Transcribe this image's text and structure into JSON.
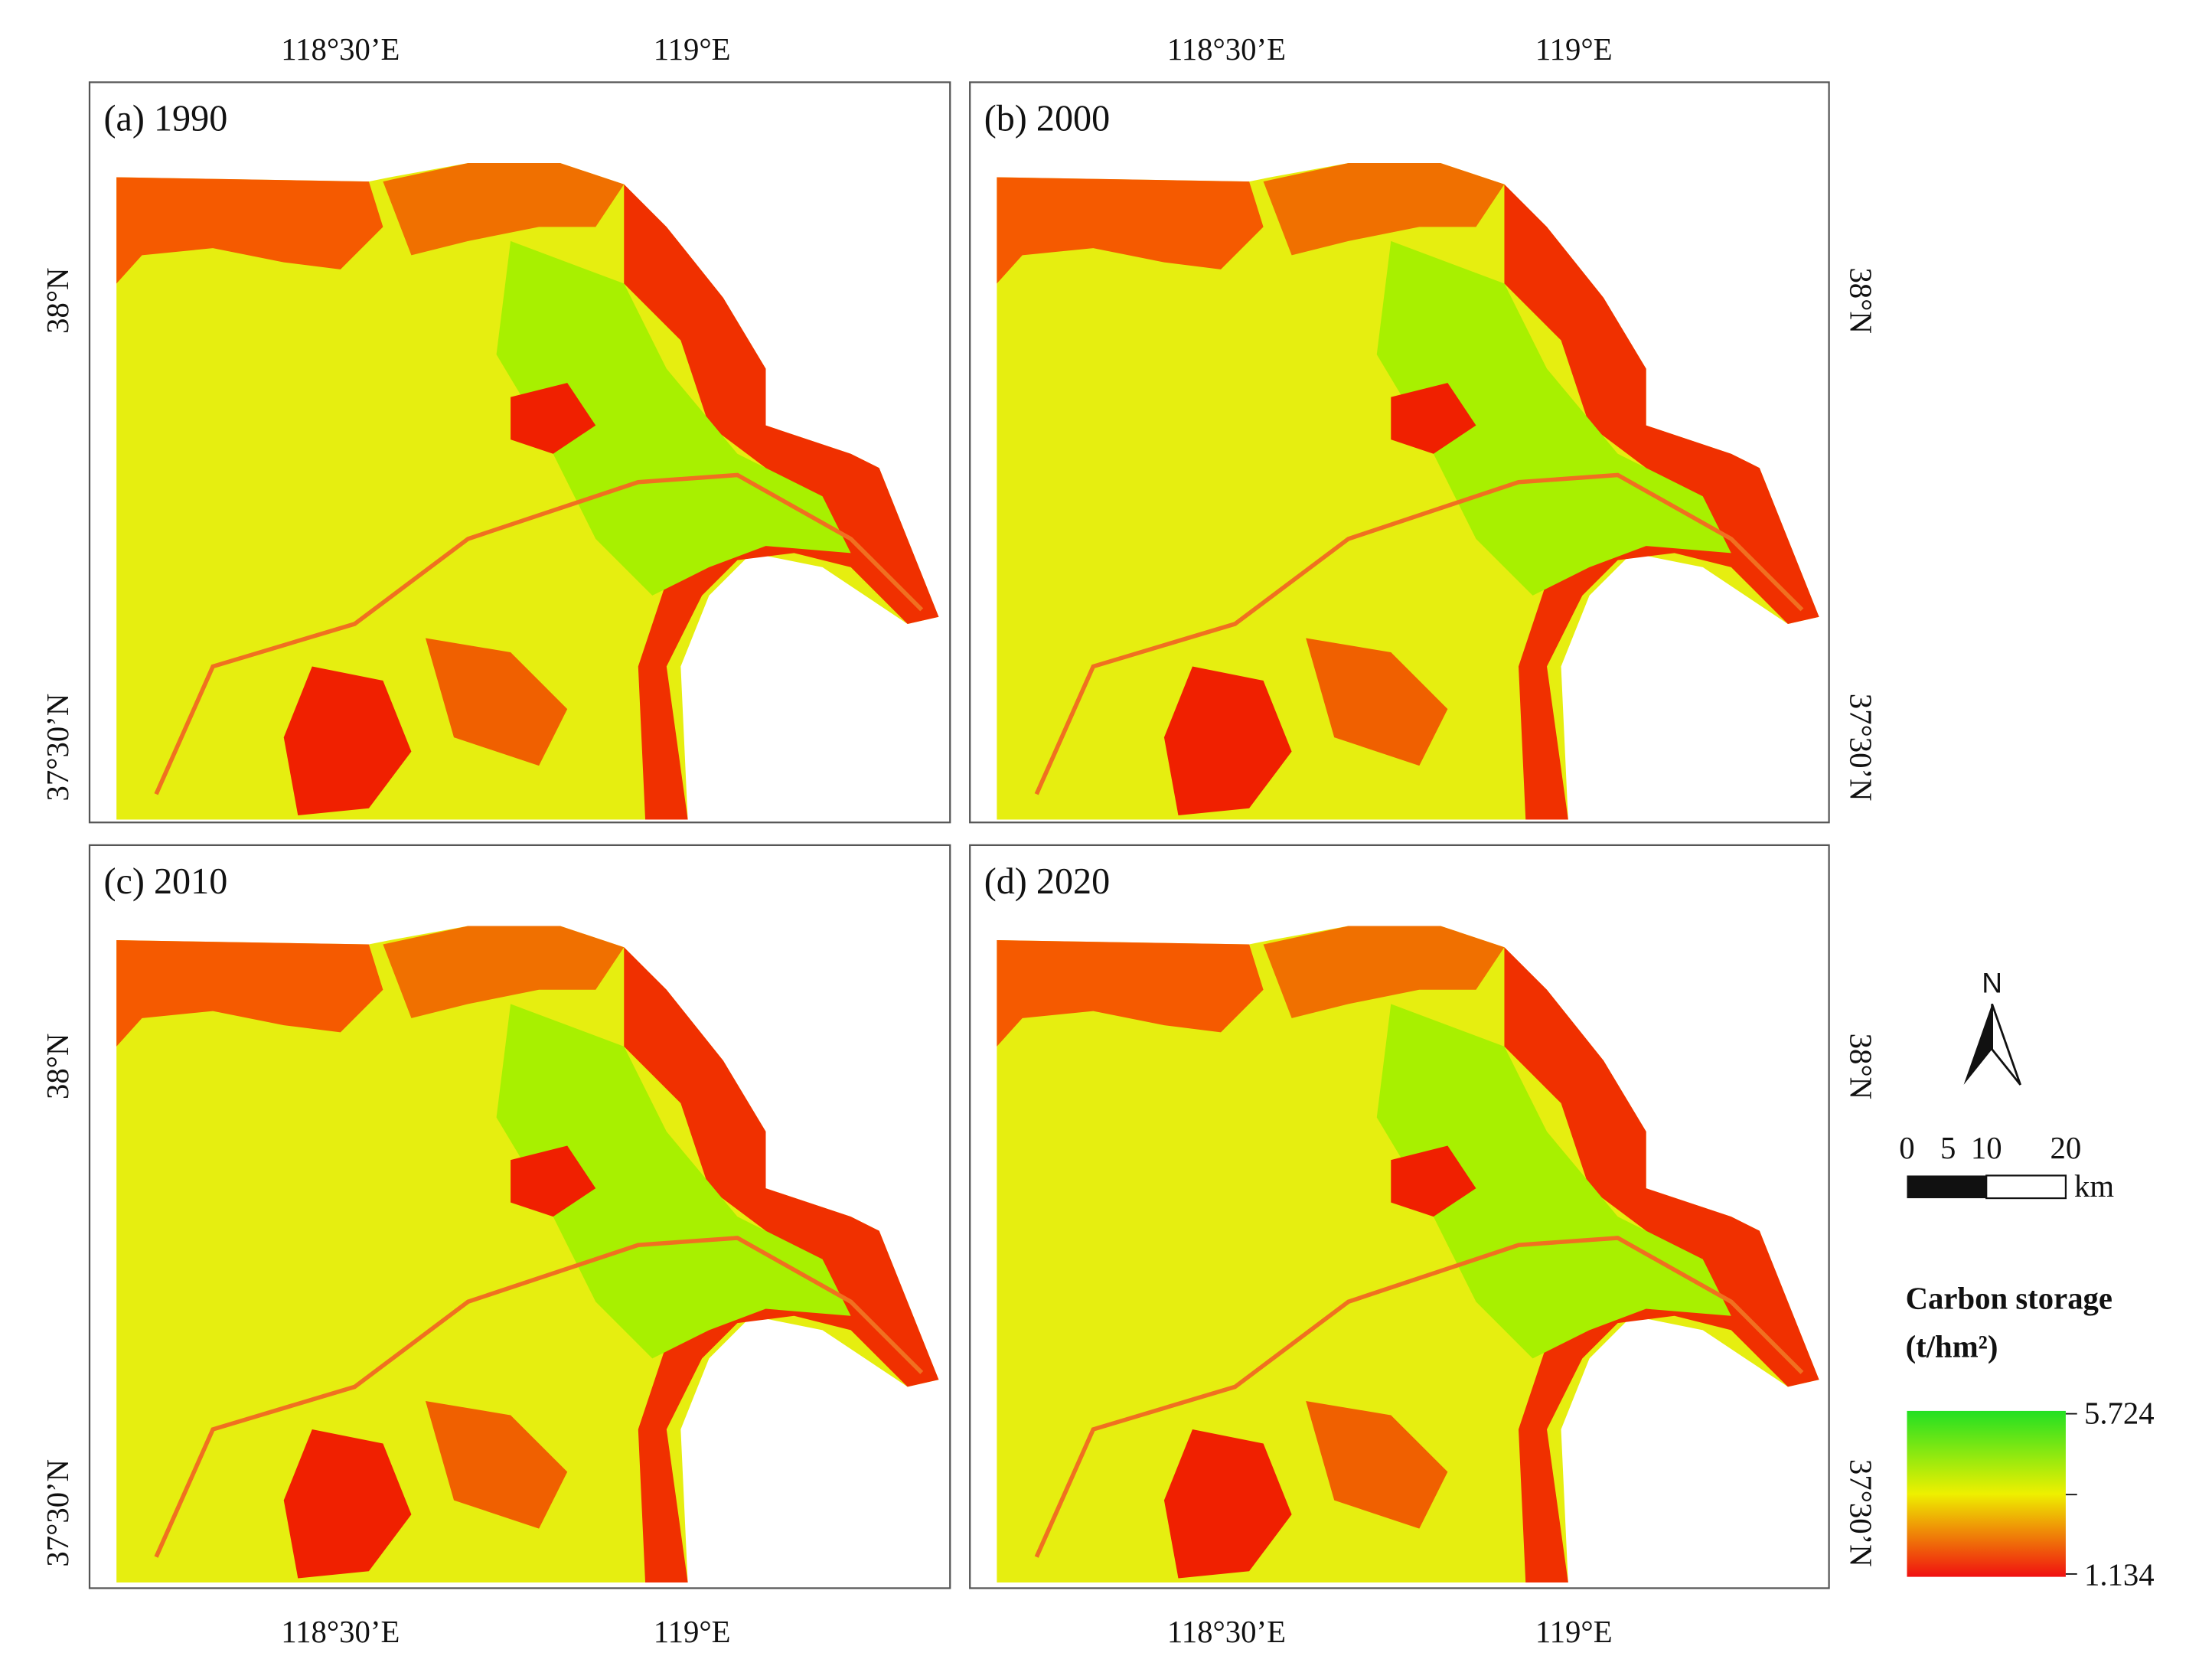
{
  "panels": [
    {
      "label": "(a) 1990"
    },
    {
      "label": "(b) 2000"
    },
    {
      "label": "(c) 2010"
    },
    {
      "label": "(d) 2020"
    }
  ],
  "longitude_labels": [
    "118°30’E",
    "119°E"
  ],
  "latitude_labels": [
    "38°N",
    "37°30’N"
  ],
  "north_arrow": "N",
  "scale_bar": {
    "labels": [
      "0",
      "5",
      "10",
      "20"
    ],
    "unit": "km"
  },
  "legend": {
    "title": "Carbon storage",
    "unit": "(t/hm²)",
    "max": "5.724",
    "min": "1.134"
  }
}
